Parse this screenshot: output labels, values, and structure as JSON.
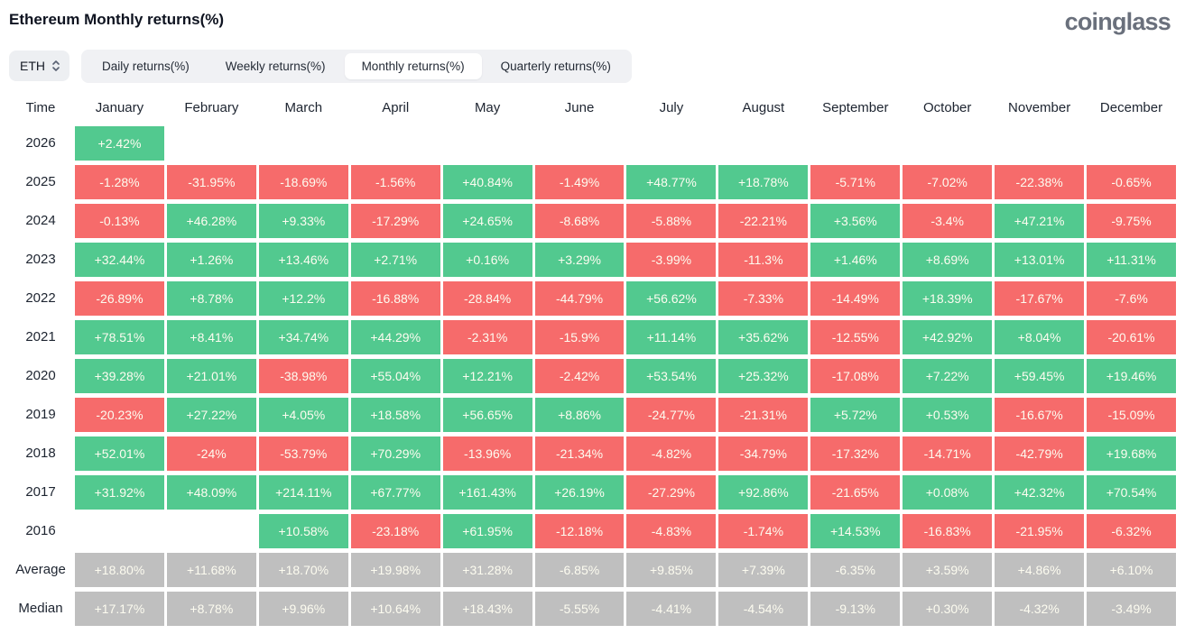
{
  "header": {
    "title": "Ethereum Monthly returns(%)",
    "logo": "coinglass"
  },
  "controls": {
    "symbol": "ETH",
    "tabs": [
      {
        "label": "Daily returns(%)",
        "active": false
      },
      {
        "label": "Weekly returns(%)",
        "active": false
      },
      {
        "label": "Monthly returns(%)",
        "active": true
      },
      {
        "label": "Quarterly returns(%)",
        "active": false
      }
    ]
  },
  "colors": {
    "positive": "#52c98f",
    "negative": "#f66b6b",
    "neutral": "#bfbfbf",
    "cell_text": "#fdfcf0"
  },
  "chart_data": {
    "type": "heatmap",
    "title": "Ethereum Monthly returns(%)",
    "row_header_label": "Time",
    "columns": [
      "January",
      "February",
      "March",
      "April",
      "May",
      "June",
      "July",
      "August",
      "September",
      "October",
      "November",
      "December"
    ],
    "rows": [
      {
        "label": "2026",
        "type": "year",
        "values": [
          "+2.42%",
          "",
          "",
          "",
          "",
          "",
          "",
          "",
          "",
          "",
          "",
          ""
        ]
      },
      {
        "label": "2025",
        "type": "year",
        "values": [
          "-1.28%",
          "-31.95%",
          "-18.69%",
          "-1.56%",
          "+40.84%",
          "-1.49%",
          "+48.77%",
          "+18.78%",
          "-5.71%",
          "-7.02%",
          "-22.38%",
          "-0.65%"
        ]
      },
      {
        "label": "2024",
        "type": "year",
        "values": [
          "-0.13%",
          "+46.28%",
          "+9.33%",
          "-17.29%",
          "+24.65%",
          "-8.68%",
          "-5.88%",
          "-22.21%",
          "+3.56%",
          "-3.4%",
          "+47.21%",
          "-9.75%"
        ]
      },
      {
        "label": "2023",
        "type": "year",
        "values": [
          "+32.44%",
          "+1.26%",
          "+13.46%",
          "+2.71%",
          "+0.16%",
          "+3.29%",
          "-3.99%",
          "-11.3%",
          "+1.46%",
          "+8.69%",
          "+13.01%",
          "+11.31%"
        ]
      },
      {
        "label": "2022",
        "type": "year",
        "values": [
          "-26.89%",
          "+8.78%",
          "+12.2%",
          "-16.88%",
          "-28.84%",
          "-44.79%",
          "+56.62%",
          "-7.33%",
          "-14.49%",
          "+18.39%",
          "-17.67%",
          "-7.6%"
        ]
      },
      {
        "label": "2021",
        "type": "year",
        "values": [
          "+78.51%",
          "+8.41%",
          "+34.74%",
          "+44.29%",
          "-2.31%",
          "-15.9%",
          "+11.14%",
          "+35.62%",
          "-12.55%",
          "+42.92%",
          "+8.04%",
          "-20.61%"
        ]
      },
      {
        "label": "2020",
        "type": "year",
        "values": [
          "+39.28%",
          "+21.01%",
          "-38.98%",
          "+55.04%",
          "+12.21%",
          "-2.42%",
          "+53.54%",
          "+25.32%",
          "-17.08%",
          "+7.22%",
          "+59.45%",
          "+19.46%"
        ]
      },
      {
        "label": "2019",
        "type": "year",
        "values": [
          "-20.23%",
          "+27.22%",
          "+4.05%",
          "+18.58%",
          "+56.65%",
          "+8.86%",
          "-24.77%",
          "-21.31%",
          "+5.72%",
          "+0.53%",
          "-16.67%",
          "-15.09%"
        ]
      },
      {
        "label": "2018",
        "type": "year",
        "values": [
          "+52.01%",
          "-24%",
          "-53.79%",
          "+70.29%",
          "-13.96%",
          "-21.34%",
          "-4.82%",
          "-34.79%",
          "-17.32%",
          "-14.71%",
          "-42.79%",
          "+19.68%"
        ]
      },
      {
        "label": "2017",
        "type": "year",
        "values": [
          "+31.92%",
          "+48.09%",
          "+214.11%",
          "+67.77%",
          "+161.43%",
          "+26.19%",
          "-27.29%",
          "+92.86%",
          "-21.65%",
          "+0.08%",
          "+42.32%",
          "+70.54%"
        ]
      },
      {
        "label": "2016",
        "type": "year",
        "values": [
          "",
          "",
          "+10.58%",
          "-23.18%",
          "+61.95%",
          "-12.18%",
          "-4.83%",
          "-1.74%",
          "+14.53%",
          "-16.83%",
          "-21.95%",
          "-6.32%"
        ]
      },
      {
        "label": "Average",
        "type": "aggregate",
        "values": [
          "+18.80%",
          "+11.68%",
          "+18.70%",
          "+19.98%",
          "+31.28%",
          "-6.85%",
          "+9.85%",
          "+7.39%",
          "-6.35%",
          "+3.59%",
          "+4.86%",
          "+6.10%"
        ]
      },
      {
        "label": "Median",
        "type": "aggregate",
        "values": [
          "+17.17%",
          "+8.78%",
          "+9.96%",
          "+10.64%",
          "+18.43%",
          "-5.55%",
          "-4.41%",
          "-4.54%",
          "-9.13%",
          "+0.30%",
          "-4.32%",
          "-3.49%"
        ]
      }
    ]
  }
}
